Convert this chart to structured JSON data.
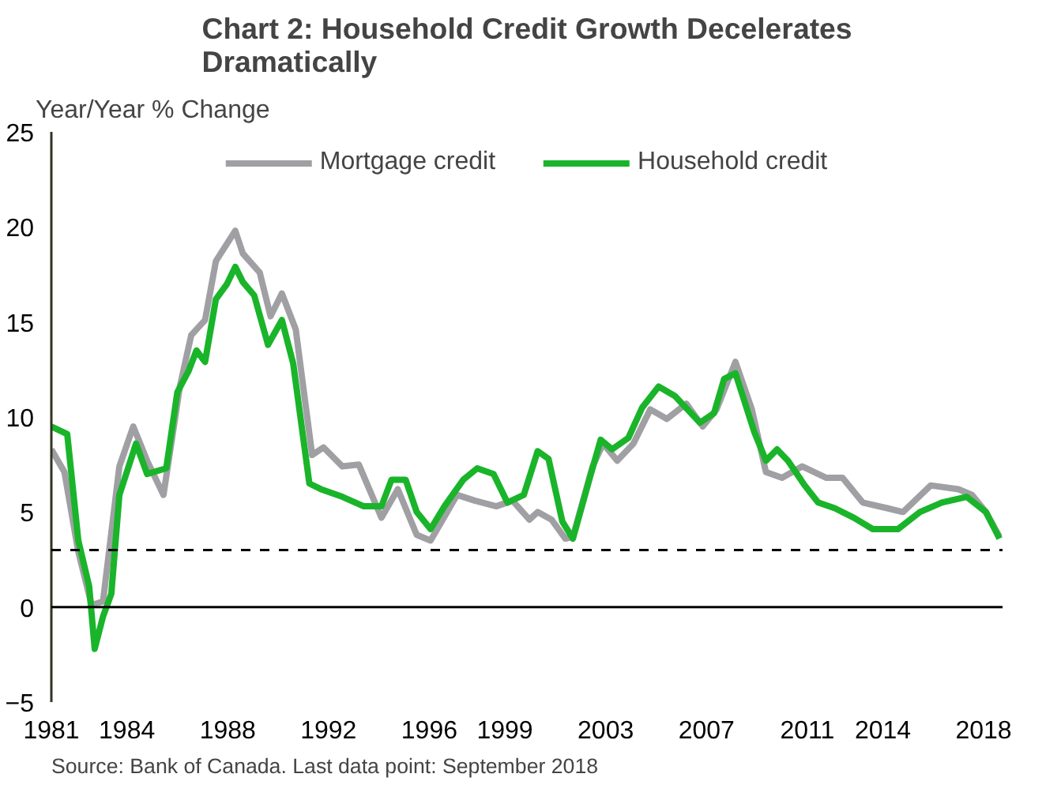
{
  "chart_data": {
    "type": "line",
    "title": "Chart 2: Household Credit Growth Decelerates Dramatically",
    "ylabel": "Year/Year % Change",
    "annotations": [
      "Source: Bank of Canada. Last data point: September 2018"
    ],
    "xlim": [
      1981,
      2018.75
    ],
    "ylim": [
      -5,
      25
    ],
    "yticks": [
      -5,
      0,
      5,
      10,
      15,
      20,
      25
    ],
    "xticks": [
      1981,
      1984,
      1988,
      1992,
      1996,
      1999,
      2003,
      2007,
      2011,
      2014,
      2018
    ],
    "grid": false,
    "legend": "top",
    "marker": "none",
    "line_style": "solid",
    "ref_lines": [
      {
        "axis": "y",
        "value": 0,
        "color": "#000000",
        "line_style": "solid"
      },
      {
        "axis": "y",
        "value": 3,
        "color": "#000000",
        "line_style": "dashed"
      }
    ],
    "series": [
      {
        "name": "Mortgage credit",
        "color": "#a0a0a4",
        "x": [
          1981.0,
          1981.52,
          1982.07,
          1982.6,
          1983.05,
          1983.7,
          1984.25,
          1984.8,
          1985.45,
          1986.1,
          1986.55,
          1987.1,
          1987.53,
          1988.3,
          1988.6,
          1989.27,
          1989.7,
          1990.15,
          1990.7,
          1991.35,
          1991.8,
          1992.55,
          1993.2,
          1994.1,
          1994.75,
          1995.5,
          1996.05,
          1997.1,
          1997.8,
          1998.66,
          1999.3,
          1999.97,
          2000.3,
          2000.85,
          2001.4,
          2001.7,
          2002.48,
          2002.9,
          2003.46,
          2004.1,
          2004.77,
          2005.43,
          2006.2,
          2006.85,
          2007.4,
          2008.15,
          2008.8,
          2009.36,
          2010.0,
          2010.8,
          2011.76,
          2012.4,
          2013.2,
          2014.17,
          2014.8,
          2015.9,
          2017.0,
          2017.54,
          2018.09,
          2018.63
        ],
        "values": [
          8.3,
          7.1,
          2.9,
          0.1,
          0.3,
          7.4,
          9.5,
          7.7,
          5.9,
          11.6,
          14.3,
          15.1,
          18.2,
          19.8,
          18.6,
          17.6,
          15.3,
          16.5,
          14.6,
          8.0,
          8.4,
          7.4,
          7.5,
          4.7,
          6.2,
          3.8,
          3.5,
          5.9,
          5.6,
          5.3,
          5.6,
          4.6,
          5.0,
          4.6,
          3.6,
          3.7,
          7.4,
          8.6,
          7.7,
          8.6,
          10.4,
          9.9,
          10.7,
          9.5,
          10.4,
          12.9,
          10.4,
          7.1,
          6.8,
          7.4,
          6.8,
          6.8,
          5.5,
          5.2,
          5.0,
          6.4,
          6.2,
          5.9,
          5.0,
          3.7
        ]
      },
      {
        "name": "Household credit",
        "color": "#1ab42a",
        "x": [
          1981.0,
          1981.63,
          1982.07,
          1982.5,
          1982.72,
          1983.05,
          1983.38,
          1983.7,
          1984.36,
          1984.8,
          1985.56,
          1986.0,
          1986.44,
          1986.76,
          1987.1,
          1987.53,
          1987.97,
          1988.3,
          1988.6,
          1989.05,
          1989.6,
          1990.15,
          1990.6,
          1991.24,
          1991.7,
          1992.55,
          1993.4,
          1994.1,
          1994.5,
          1995.06,
          1995.5,
          1996.05,
          1996.6,
          1997.35,
          1997.9,
          1998.55,
          1999.1,
          1999.75,
          2000.3,
          2000.73,
          2001.28,
          2001.7,
          2002.37,
          2002.8,
          2003.25,
          2003.9,
          2004.45,
          2005.1,
          2005.75,
          2006.74,
          2007.3,
          2007.7,
          2008.15,
          2008.9,
          2009.36,
          2009.8,
          2010.23,
          2010.9,
          2011.43,
          2012.09,
          2012.85,
          2013.6,
          2014.6,
          2015.47,
          2016.34,
          2017.33,
          2018.09,
          2018.63
        ],
        "values": [
          9.5,
          9.1,
          3.5,
          1.1,
          -2.2,
          -0.5,
          0.7,
          5.9,
          8.6,
          7.0,
          7.3,
          11.3,
          12.4,
          13.5,
          12.9,
          16.2,
          17.0,
          17.9,
          17.1,
          16.4,
          13.8,
          15.1,
          12.8,
          6.5,
          6.2,
          5.8,
          5.3,
          5.3,
          6.7,
          6.7,
          5.0,
          4.1,
          5.3,
          6.7,
          7.3,
          7.0,
          5.5,
          5.9,
          8.2,
          7.8,
          4.5,
          3.6,
          6.8,
          8.8,
          8.3,
          8.9,
          10.5,
          11.6,
          11.1,
          9.7,
          10.2,
          12.0,
          12.3,
          9.2,
          7.7,
          8.3,
          7.7,
          6.4,
          5.5,
          5.2,
          4.7,
          4.1,
          4.1,
          5.0,
          5.5,
          5.8,
          5.0,
          3.6
        ]
      }
    ]
  }
}
